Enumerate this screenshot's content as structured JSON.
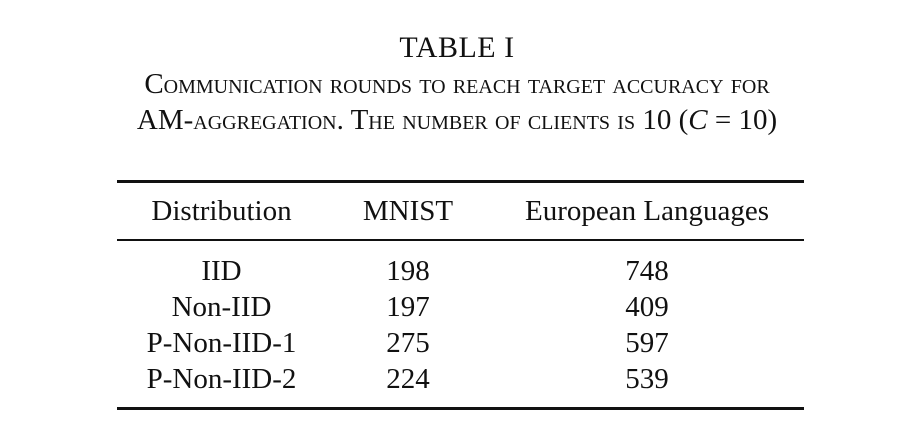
{
  "caption": {
    "table_label": "TABLE I",
    "line1": "Communication rounds to reach target accuracy for",
    "line2_prefix": "AM-aggregation. The number of clients is 10 (",
    "line2_var": "C",
    "line2_eq": " = 10)"
  },
  "table": {
    "headers": [
      "Distribution",
      "MNIST",
      "European Languages"
    ],
    "rows": [
      [
        "IID",
        "198",
        "748"
      ],
      [
        "Non-IID",
        "197",
        "409"
      ],
      [
        "P-Non-IID-1",
        "275",
        "597"
      ],
      [
        "P-Non-IID-2",
        "224",
        "539"
      ]
    ]
  }
}
